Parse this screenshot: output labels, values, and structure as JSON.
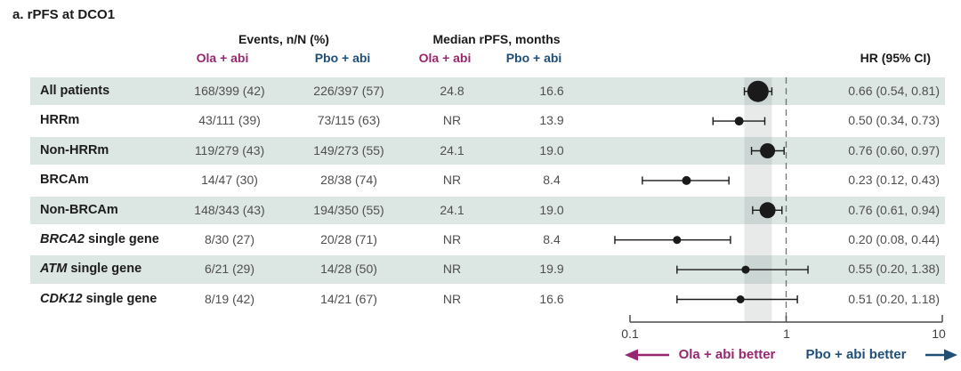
{
  "title": "a. rPFS at DCO1",
  "colors": {
    "ola_accent": "#95286E",
    "pbo_accent": "#1F4E78",
    "row_shade": "#DCE6E3",
    "marker": "#1A1A1A",
    "band": "#80888C",
    "reference_line": "#707070",
    "axis": "#4A4A4A"
  },
  "columns": {
    "events_group": "Events, n/N (%)",
    "median_group": "Median rPFS, months",
    "ola_arm": "Ola + abi",
    "pbo_arm": "Pbo + abi",
    "hr_header": "HR (95% CI)"
  },
  "rows": [
    {
      "gene": "",
      "label": "All patients",
      "shaded": true,
      "events_ola": "168/399 (42)",
      "events_pbo": "226/397 (57)",
      "median_ola": "24.8",
      "median_pbo": "16.6",
      "hr_text": "0.66 (0.54, 0.81)",
      "hr": 0.66,
      "ci_low": 0.54,
      "ci_high": 0.81,
      "marker_r": 12
    },
    {
      "gene": "",
      "label": "HRRm",
      "shaded": false,
      "events_ola": "43/111 (39)",
      "events_pbo": "73/115 (63)",
      "median_ola": "NR",
      "median_pbo": "13.9",
      "hr_text": "0.50 (0.34, 0.73)",
      "hr": 0.5,
      "ci_low": 0.34,
      "ci_high": 0.73,
      "marker_r": 5
    },
    {
      "gene": "",
      "label": "Non-HRRm",
      "shaded": true,
      "events_ola": "119/279 (43)",
      "events_pbo": "149/273 (55)",
      "median_ola": "24.1",
      "median_pbo": "19.0",
      "hr_text": "0.76 (0.60, 0.97)",
      "hr": 0.76,
      "ci_low": 0.6,
      "ci_high": 0.97,
      "marker_r": 8.5
    },
    {
      "gene": "",
      "label": "BRCAm",
      "shaded": false,
      "events_ola": "14/47 (30)",
      "events_pbo": "28/38 (74)",
      "median_ola": "NR",
      "median_pbo": "8.4",
      "hr_text": "0.23 (0.12, 0.43)",
      "hr": 0.23,
      "ci_low": 0.12,
      "ci_high": 0.43,
      "marker_r": 5
    },
    {
      "gene": "",
      "label": "Non-BRCAm",
      "shaded": true,
      "events_ola": "148/343 (43)",
      "events_pbo": "194/350 (55)",
      "median_ola": "24.1",
      "median_pbo": "19.0",
      "hr_text": "0.76 (0.61, 0.94)",
      "hr": 0.76,
      "ci_low": 0.61,
      "ci_high": 0.94,
      "marker_r": 9
    },
    {
      "gene": "BRCA2",
      "label": " single gene",
      "shaded": false,
      "events_ola": "8/30 (27)",
      "events_pbo": "20/28 (71)",
      "median_ola": "NR",
      "median_pbo": "8.4",
      "hr_text": "0.20 (0.08, 0.44)",
      "hr": 0.2,
      "ci_low": 0.08,
      "ci_high": 0.44,
      "marker_r": 4.5
    },
    {
      "gene": "ATM",
      "label": " single gene",
      "shaded": true,
      "events_ola": "6/21 (29)",
      "events_pbo": "14/28 (50)",
      "median_ola": "NR",
      "median_pbo": "19.9",
      "hr_text": "0.55 (0.20, 1.38)",
      "hr": 0.55,
      "ci_low": 0.2,
      "ci_high": 1.38,
      "marker_r": 4.5
    },
    {
      "gene": "CDK12",
      "label": " single gene",
      "shaded": false,
      "events_ola": "8/19 (42)",
      "events_pbo": "14/21 (67)",
      "median_ola": "NR",
      "median_pbo": "16.6",
      "hr_text": "0.51 (0.20, 1.18)",
      "hr": 0.51,
      "ci_low": 0.2,
      "ci_high": 1.18,
      "marker_r": 4.5
    }
  ],
  "axis": {
    "scale": "log",
    "tick_labels": [
      "0.1",
      "1",
      "10"
    ],
    "tick_values": [
      0.1,
      1,
      10
    ]
  },
  "footer": {
    "ola_better": "Ola + abi better",
    "pbo_better": "Pbo + abi better"
  },
  "chart_data": {
    "type": "scatter",
    "subtype": "forest-plot",
    "title": "a. rPFS at DCO1",
    "categories": [
      "All patients",
      "HRRm",
      "Non-HRRm",
      "BRCAm",
      "Non-BRCAm",
      "BRCA2 single gene",
      "ATM single gene",
      "CDK12 single gene"
    ],
    "series": [
      {
        "name": "HR",
        "values": [
          0.66,
          0.5,
          0.76,
          0.23,
          0.76,
          0.2,
          0.55,
          0.51
        ]
      },
      {
        "name": "CI lower",
        "values": [
          0.54,
          0.34,
          0.6,
          0.12,
          0.61,
          0.08,
          0.2,
          0.2
        ]
      },
      {
        "name": "CI upper",
        "values": [
          0.81,
          0.73,
          0.97,
          0.43,
          0.94,
          0.44,
          1.38,
          1.18
        ]
      }
    ],
    "xlabel": "HR (95% CI)",
    "x_scale": "log",
    "xlim": [
      0.1,
      10
    ],
    "x_ticks": [
      0.1,
      1,
      10
    ],
    "reference_line": 1.0,
    "shaded_band": [
      0.54,
      0.81
    ],
    "direction_labels": {
      "left": "Ola + abi better",
      "right": "Pbo + abi better"
    },
    "table": {
      "events_nN_pct": {
        "ola": [
          "168/399 (42)",
          "43/111 (39)",
          "119/279 (43)",
          "14/47 (30)",
          "148/343 (43)",
          "8/30 (27)",
          "6/21 (29)",
          "8/19 (42)"
        ],
        "pbo": [
          "226/397 (57)",
          "73/115 (63)",
          "149/273 (55)",
          "28/38 (74)",
          "194/350 (55)",
          "20/28 (71)",
          "14/28 (50)",
          "14/21 (67)"
        ]
      },
      "median_rpfs_months": {
        "ola": [
          "24.8",
          "NR",
          "24.1",
          "NR",
          "24.1",
          "NR",
          "NR",
          "NR"
        ],
        "pbo": [
          "16.6",
          "13.9",
          "19.0",
          "8.4",
          "19.0",
          "8.4",
          "19.9",
          "16.6"
        ]
      },
      "hr_95ci": [
        "0.66 (0.54, 0.81)",
        "0.50 (0.34, 0.73)",
        "0.76 (0.60, 0.97)",
        "0.23 (0.12, 0.43)",
        "0.76 (0.61, 0.94)",
        "0.20 (0.08, 0.44)",
        "0.55 (0.20, 1.38)",
        "0.51 (0.20, 1.18)"
      ]
    }
  }
}
